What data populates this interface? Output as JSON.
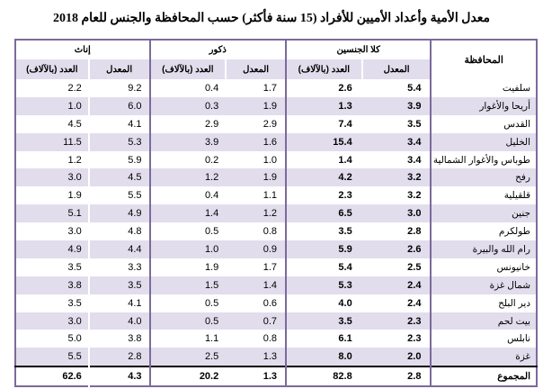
{
  "title": "معدل الأمية وأعداد الأميين للأفراد (15 سنة فأكثر) حسب المحافظة والجنس للعام 2018",
  "headers": {
    "governorate": "المحافظة",
    "both": "كلا الجنسين",
    "males": "ذكور",
    "females": "إناث",
    "rate": "المعدل",
    "count": "العدد (بالآلاف)"
  },
  "rows": [
    {
      "name": "سلفيت",
      "both_rate": "5.4",
      "both_count": "2.6",
      "male_rate": "1.7",
      "male_count": "0.4",
      "female_rate": "9.2",
      "female_count": "2.2"
    },
    {
      "name": "أريحا والأغوار",
      "both_rate": "3.9",
      "both_count": "1.3",
      "male_rate": "1.9",
      "male_count": "0.3",
      "female_rate": "6.0",
      "female_count": "1.0"
    },
    {
      "name": "القدس",
      "both_rate": "3.5",
      "both_count": "7.4",
      "male_rate": "2.9",
      "male_count": "2.9",
      "female_rate": "4.1",
      "female_count": "4.5"
    },
    {
      "name": "الخليل",
      "both_rate": "3.4",
      "both_count": "15.4",
      "male_rate": "1.6",
      "male_count": "3.9",
      "female_rate": "5.3",
      "female_count": "11.5"
    },
    {
      "name": "طوباس والأغوار الشمالية",
      "both_rate": "3.4",
      "both_count": "1.4",
      "male_rate": "1.0",
      "male_count": "0.2",
      "female_rate": "5.9",
      "female_count": "1.2"
    },
    {
      "name": "رفح",
      "both_rate": "3.2",
      "both_count": "4.2",
      "male_rate": "1.9",
      "male_count": "1.2",
      "female_rate": "4.5",
      "female_count": "3.0"
    },
    {
      "name": "قلقيلية",
      "both_rate": "3.2",
      "both_count": "2.3",
      "male_rate": "1.1",
      "male_count": "0.4",
      "female_rate": "5.5",
      "female_count": "1.9"
    },
    {
      "name": "جنين",
      "both_rate": "3.0",
      "both_count": "6.5",
      "male_rate": "1.2",
      "male_count": "1.4",
      "female_rate": "4.9",
      "female_count": "5.1"
    },
    {
      "name": "طولكرم",
      "both_rate": "2.8",
      "both_count": "3.5",
      "male_rate": "0.8",
      "male_count": "0.5",
      "female_rate": "4.8",
      "female_count": "3.0"
    },
    {
      "name": "رام الله والبيرة",
      "both_rate": "2.6",
      "both_count": "5.9",
      "male_rate": "0.9",
      "male_count": "1.0",
      "female_rate": "4.4",
      "female_count": "4.9"
    },
    {
      "name": "خانيونس",
      "both_rate": "2.5",
      "both_count": "5.4",
      "male_rate": "1.7",
      "male_count": "1.9",
      "female_rate": "3.3",
      "female_count": "3.5"
    },
    {
      "name": "شمال غزة",
      "both_rate": "2.4",
      "both_count": "5.3",
      "male_rate": "1.4",
      "male_count": "1.5",
      "female_rate": "3.5",
      "female_count": "3.8"
    },
    {
      "name": "دير البلح",
      "both_rate": "2.4",
      "both_count": "4.0",
      "male_rate": "0.6",
      "male_count": "0.5",
      "female_rate": "4.1",
      "female_count": "3.5"
    },
    {
      "name": "بيت لحم",
      "both_rate": "2.3",
      "both_count": "3.5",
      "male_rate": "0.7",
      "male_count": "0.5",
      "female_rate": "4.0",
      "female_count": "3.0"
    },
    {
      "name": "نابلس",
      "both_rate": "2.3",
      "both_count": "6.1",
      "male_rate": "0.8",
      "male_count": "1.1",
      "female_rate": "3.8",
      "female_count": "5.0"
    },
    {
      "name": "غزة",
      "both_rate": "2.0",
      "both_count": "8.0",
      "male_rate": "1.3",
      "male_count": "2.5",
      "female_rate": "2.8",
      "female_count": "5.5"
    }
  ],
  "total": {
    "name": "المجموع",
    "both_rate": "2.8",
    "both_count": "82.8",
    "male_rate": "1.3",
    "male_count": "20.2",
    "female_rate": "4.3",
    "female_count": "62.6"
  }
}
